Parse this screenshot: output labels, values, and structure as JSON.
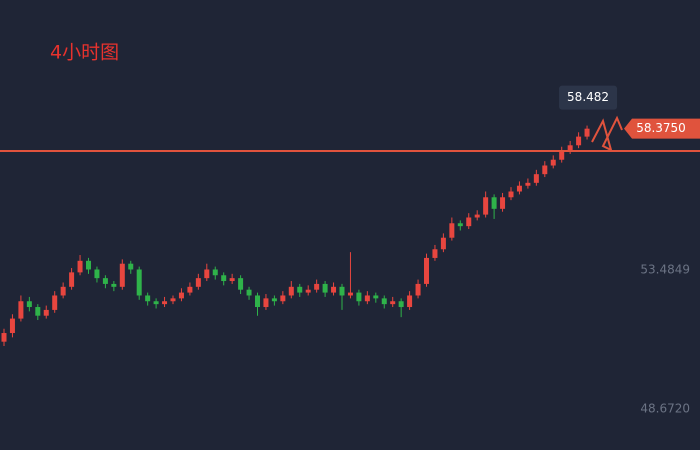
{
  "chart_data": {
    "type": "candlestick",
    "title": "4小时图",
    "up_color": "#e8463f",
    "down_color": "#2fb34a",
    "level_color": "#e0533d",
    "ylim": [
      47.25,
      62.83
    ],
    "yticks": [
      53.4849,
      {
        "value": 48.672,
        "label": "48.6720"
      }
    ],
    "level": 57.6,
    "last_price": {
      "value": 58.375,
      "label": "58.3750"
    },
    "tooltip": 58.482,
    "ohlc": [
      [
        51.0,
        51.45,
        50.85,
        51.3
      ],
      [
        51.3,
        51.95,
        51.15,
        51.8
      ],
      [
        51.8,
        52.6,
        51.7,
        52.4
      ],
      [
        52.4,
        52.55,
        52.05,
        52.2
      ],
      [
        52.2,
        52.3,
        51.75,
        51.9
      ],
      [
        51.9,
        52.25,
        51.8,
        52.1
      ],
      [
        52.1,
        52.75,
        52.0,
        52.6
      ],
      [
        52.6,
        53.05,
        52.5,
        52.9
      ],
      [
        52.9,
        53.55,
        52.8,
        53.4
      ],
      [
        53.4,
        54.0,
        53.3,
        53.8
      ],
      [
        53.8,
        53.9,
        53.35,
        53.5
      ],
      [
        53.5,
        53.6,
        53.05,
        53.2
      ],
      [
        53.2,
        53.3,
        52.85,
        53.0
      ],
      [
        53.0,
        53.1,
        52.75,
        52.9
      ],
      [
        52.9,
        53.85,
        52.8,
        53.7
      ],
      [
        53.7,
        53.8,
        53.35,
        53.5
      ],
      [
        53.5,
        53.6,
        52.45,
        52.6
      ],
      [
        52.6,
        52.7,
        52.25,
        52.4
      ],
      [
        52.4,
        52.5,
        52.15,
        52.3
      ],
      [
        52.3,
        52.55,
        52.2,
        52.4
      ],
      [
        52.4,
        52.6,
        52.3,
        52.5
      ],
      [
        52.5,
        52.85,
        52.4,
        52.7
      ],
      [
        52.7,
        53.05,
        52.6,
        52.9
      ],
      [
        52.9,
        53.35,
        52.8,
        53.2
      ],
      [
        53.2,
        53.7,
        53.1,
        53.5
      ],
      [
        53.5,
        53.6,
        53.15,
        53.3
      ],
      [
        53.3,
        53.4,
        52.95,
        53.1
      ],
      [
        53.1,
        53.35,
        53.0,
        53.2
      ],
      [
        53.2,
        53.3,
        52.65,
        52.8
      ],
      [
        52.8,
        52.9,
        52.45,
        52.6
      ],
      [
        52.6,
        52.7,
        51.9,
        52.2
      ],
      [
        52.2,
        52.65,
        52.1,
        52.5
      ],
      [
        52.5,
        52.6,
        52.25,
        52.4
      ],
      [
        52.4,
        52.75,
        52.3,
        52.6
      ],
      [
        52.6,
        53.1,
        52.5,
        52.9
      ],
      [
        52.9,
        53.0,
        52.55,
        52.7
      ],
      [
        52.7,
        52.95,
        52.6,
        52.8
      ],
      [
        52.8,
        53.15,
        52.7,
        53.0
      ],
      [
        53.0,
        53.1,
        52.55,
        52.7
      ],
      [
        52.7,
        53.05,
        52.6,
        52.9
      ],
      [
        52.9,
        53.0,
        52.1,
        52.6
      ],
      [
        52.6,
        54.1,
        52.5,
        52.7
      ],
      [
        52.7,
        52.8,
        52.25,
        52.4
      ],
      [
        52.4,
        52.75,
        52.3,
        52.6
      ],
      [
        52.6,
        52.7,
        52.35,
        52.5
      ],
      [
        52.5,
        52.6,
        52.15,
        52.3
      ],
      [
        52.3,
        52.55,
        52.2,
        52.4
      ],
      [
        52.4,
        52.5,
        51.85,
        52.2
      ],
      [
        52.2,
        52.75,
        52.1,
        52.6
      ],
      [
        52.6,
        53.15,
        52.5,
        53.0
      ],
      [
        53.0,
        54.05,
        52.9,
        53.9
      ],
      [
        53.9,
        54.35,
        53.8,
        54.2
      ],
      [
        54.2,
        54.75,
        54.1,
        54.6
      ],
      [
        54.6,
        55.3,
        54.5,
        55.1
      ],
      [
        55.1,
        55.2,
        54.85,
        55.0
      ],
      [
        55.0,
        55.45,
        54.9,
        55.3
      ],
      [
        55.3,
        55.55,
        55.2,
        55.4
      ],
      [
        55.4,
        56.2,
        55.3,
        56.0
      ],
      [
        56.0,
        56.1,
        55.25,
        55.6
      ],
      [
        55.6,
        56.15,
        55.5,
        56.0
      ],
      [
        56.0,
        56.35,
        55.9,
        56.2
      ],
      [
        56.2,
        56.55,
        56.1,
        56.4
      ],
      [
        56.4,
        56.65,
        56.3,
        56.5
      ],
      [
        56.5,
        56.95,
        56.4,
        56.8
      ],
      [
        56.8,
        57.25,
        56.7,
        57.1
      ],
      [
        57.1,
        57.45,
        57.0,
        57.3
      ],
      [
        57.3,
        57.75,
        57.2,
        57.6
      ],
      [
        57.6,
        57.95,
        57.5,
        57.8
      ],
      [
        57.8,
        58.25,
        57.7,
        58.1
      ],
      [
        58.1,
        58.482,
        58.0,
        58.375
      ]
    ]
  }
}
